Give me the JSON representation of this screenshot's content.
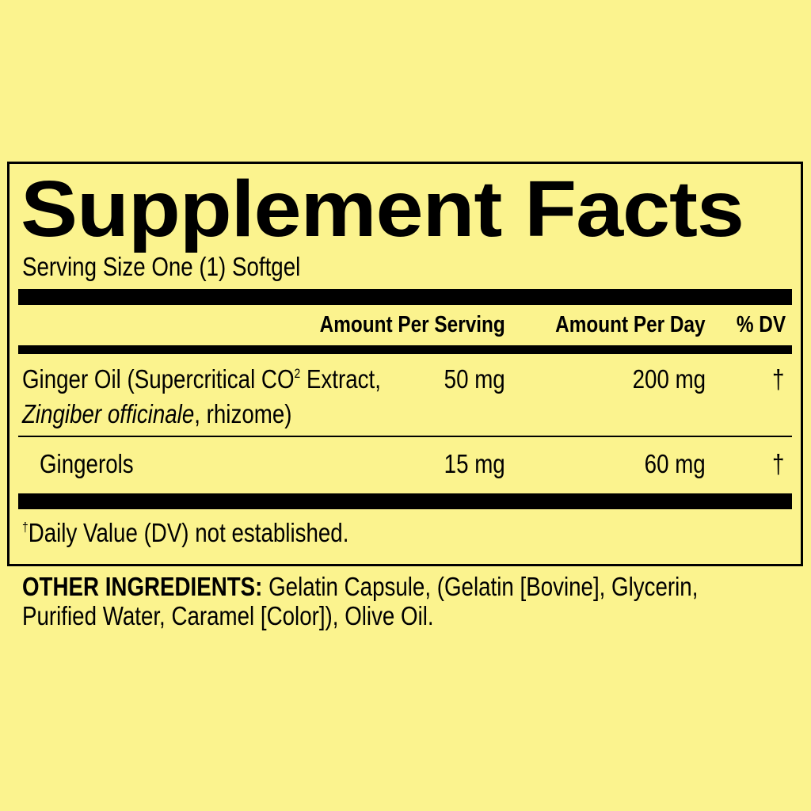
{
  "title": "Supplement Facts",
  "serving_size": "Serving Size One (1) Softgel",
  "columns": {
    "per_serving": "Amount Per Serving",
    "per_day": "Amount Per Day",
    "dv": "% DV"
  },
  "rows": [
    {
      "name_part1": "Ginger Oil (Supercritical CO",
      "name_sup": "2",
      "name_part2": " Extract,",
      "name_line2_italic": "Zingiber officinale",
      "name_line2_rest": ", rhizome)",
      "per_serving": "50 mg",
      "per_day": "200 mg",
      "dv": "†"
    },
    {
      "name": "Gingerols",
      "per_serving": "15 mg",
      "per_day": "60 mg",
      "dv": "†"
    }
  ],
  "footnote": {
    "mark": "†",
    "text": "Daily Value (DV) not established."
  },
  "other_ingredients": {
    "label": "OTHER INGREDIENTS:",
    "line1": " Gelatin Capsule, (Gelatin [Bovine], Glycerin,",
    "line2": "Purified Water, Caramel [Color]), Olive Oil."
  },
  "colors": {
    "background": "#fbf38e",
    "ink": "#000000"
  }
}
